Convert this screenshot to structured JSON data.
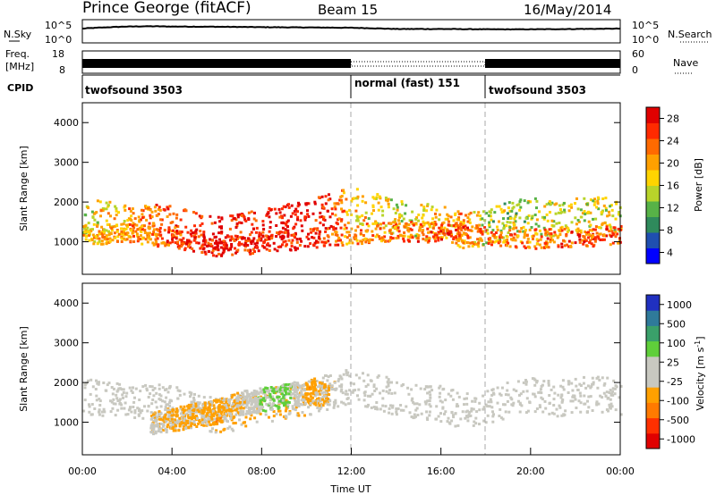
{
  "header": {
    "station": "Prince George (fitACF)",
    "beam": "Beam 15",
    "date": "16/May/2014"
  },
  "noise_panel": {
    "left_label": "N.Sky",
    "right_label": "N.Search",
    "left_ticks": [
      "10^5",
      "10^0"
    ],
    "right_ticks": [
      "10^5",
      "10^0"
    ]
  },
  "freq_panel": {
    "left_label_lines": [
      "Freq.",
      "[MHz]"
    ],
    "left_ticks": [
      "18",
      "8"
    ],
    "right_label": "Nave",
    "right_ticks": [
      "60",
      "0"
    ]
  },
  "cpid_panel": {
    "label": "CPID",
    "segments": [
      {
        "name": "twofsound 3503",
        "start_hour": 0,
        "end_hour": 12
      },
      {
        "name": "normal (fast) 151",
        "start_hour": 12,
        "end_hour": 18
      },
      {
        "name": "twofsound 3503",
        "start_hour": 18,
        "end_hour": 24
      }
    ]
  },
  "x_axis": {
    "label": "Time UT",
    "ticks": [
      "00:00",
      "04:00",
      "08:00",
      "12:00",
      "16:00",
      "20:00",
      "00:00"
    ]
  },
  "colors": {
    "power_scale": [
      "#0000ff",
      "#1f4fb0",
      "#2f8a5c",
      "#57b247",
      "#b8d42a",
      "#ffd400",
      "#ffa000",
      "#ff6a00",
      "#ff2a00",
      "#e00000"
    ],
    "velocity_scale": [
      "#2030c0",
      "#2f7a9a",
      "#3aa06a",
      "#5fcf3a",
      "#c8c8c0",
      "#c8c8c0",
      "#ffa000",
      "#ff7a00",
      "#ff3000",
      "#e00000"
    ]
  },
  "power_colorbar": {
    "label": "Power [dB]",
    "ticks": [
      "28",
      "24",
      "20",
      "16",
      "12",
      "8",
      "4"
    ]
  },
  "velocity_colorbar": {
    "label": "Velocity",
    "unit_text": "[m s",
    "unit_sup": "-1",
    "unit_close": "]",
    "ticks": [
      "1000",
      "500",
      "100",
      "25",
      "-25",
      "-100",
      "-500",
      "-1000"
    ]
  },
  "chart_data": [
    {
      "type": "line",
      "title": "N.Sky",
      "y_scale": "log",
      "ylim": [
        1,
        100000
      ],
      "x_hours": [
        0,
        1,
        2,
        3,
        4,
        6,
        8,
        10,
        12,
        13,
        14,
        16,
        18,
        20,
        22,
        24
      ],
      "series": [
        {
          "values": [
            1500,
            3000,
            5000,
            6000,
            5000,
            4500,
            3500,
            3000,
            2500,
            1800,
            1200,
            1200,
            1000,
            1000,
            1200,
            1500
          ]
        }
      ]
    },
    {
      "type": "bar",
      "title": "Freq. [MHz]",
      "ylim": [
        8,
        18
      ],
      "x_hours": [
        0,
        12,
        18,
        24
      ],
      "values": [
        10,
        10,
        10,
        10
      ]
    },
    {
      "type": "heatmap",
      "title": "Power [dB]",
      "xlabel": "Time UT",
      "ylabel": "Slant Range [km]",
      "xlim_hours": [
        0,
        24
      ],
      "ylim_km": [
        180,
        4500
      ],
      "yticks": [
        1000,
        2000,
        3000,
        4000
      ],
      "clim": [
        0,
        30
      ],
      "scatter_bands": [
        {
          "x_hours": [
            0,
            1,
            2,
            3,
            4,
            5,
            6,
            7,
            8,
            9,
            10,
            11,
            12,
            13,
            14,
            15,
            16,
            17,
            18,
            19,
            20,
            21,
            22,
            23,
            24
          ],
          "range_km": [
            1700,
            1600,
            1550,
            1550,
            1500,
            1350,
            1200,
            1300,
            1450,
            1550,
            1650,
            1800,
            1950,
            1800,
            1650,
            1550,
            1500,
            1300,
            1400,
            1600,
            1700,
            1600,
            1700,
            1750,
            1650
          ],
          "power_db": [
            14,
            18,
            20,
            22,
            24,
            26,
            28,
            27,
            28,
            29,
            29,
            26,
            18,
            16,
            15,
            16,
            18,
            20,
            14,
            13,
            14,
            15,
            16,
            16,
            14
          ]
        },
        {
          "x_hours": [
            0,
            2,
            4,
            6,
            8,
            10,
            12,
            14,
            16,
            18,
            20,
            22,
            24
          ],
          "range_km": [
            1200,
            1250,
            1100,
            900,
            1000,
            1100,
            1200,
            1300,
            1250,
            1200,
            1100,
            1150,
            1200
          ],
          "power_db": [
            18,
            20,
            24,
            28,
            26,
            28,
            20,
            22,
            24,
            22,
            22,
            24,
            22
          ]
        }
      ]
    },
    {
      "type": "heatmap",
      "title": "Velocity [m s-1]",
      "xlabel": "Time UT",
      "ylabel": "Slant Range [km]",
      "xlim_hours": [
        0,
        24
      ],
      "ylim_km": [
        180,
        4500
      ],
      "yticks": [
        1000,
        2000,
        3000,
        4000
      ],
      "clim": [
        -1000,
        1000
      ],
      "scatter_bands": [
        {
          "x_hours": [
            0,
            1,
            2,
            3,
            4,
            5,
            6,
            7,
            8,
            9,
            10,
            11,
            12,
            13,
            14,
            15,
            16,
            17,
            18,
            19,
            20,
            21,
            22,
            23,
            24
          ],
          "range_km": [
            1700,
            1600,
            1550,
            1550,
            1500,
            1350,
            1200,
            1300,
            1450,
            1550,
            1650,
            1800,
            1950,
            1800,
            1650,
            1550,
            1500,
            1300,
            1400,
            1600,
            1700,
            1600,
            1700,
            1750,
            1650
          ],
          "velocity_ms": [
            0,
            0,
            0,
            0,
            0,
            -100,
            -150,
            -200,
            -250,
            -200,
            -150,
            -100,
            0,
            0,
            0,
            0,
            0,
            0,
            0,
            0,
            0,
            0,
            0,
            0,
            0
          ]
        },
        {
          "x_hours": [
            3,
            4,
            5,
            6,
            7,
            8,
            9,
            10,
            11
          ],
          "range_km": [
            1000,
            1100,
            1200,
            1300,
            1500,
            1600,
            1700,
            1800,
            1700
          ],
          "velocity_ms": [
            -100,
            -200,
            -250,
            -300,
            -200,
            200,
            300,
            -300,
            -200
          ]
        }
      ]
    }
  ]
}
